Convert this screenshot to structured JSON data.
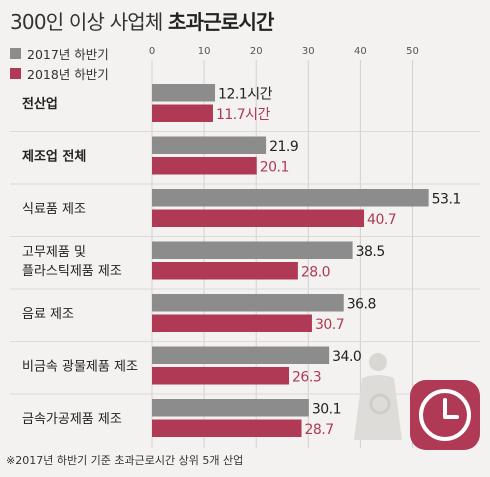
{
  "header": {
    "title_normal": "300인 이상 사업체 ",
    "title_bold": "초과근로시간"
  },
  "legend": [
    {
      "label": "2017년 하반기",
      "color": "#8c8c8c"
    },
    {
      "label": "2018년 하반기",
      "color": "#b03a56"
    }
  ],
  "colors": {
    "series_2017": "#8c8c8c",
    "series_2018": "#b03a56",
    "clock_bg": "#b03a56",
    "background": "#f3f2f0"
  },
  "footnote": "※2017년 하반기 기준 초과근로시간 상위 5개 산업",
  "chart_data": {
    "type": "bar",
    "orientation": "horizontal",
    "xlim": [
      0,
      55
    ],
    "ticks": [
      0,
      10,
      20,
      30,
      40,
      50
    ],
    "grid": true,
    "legend_position": "top-left",
    "categories": [
      {
        "label": "전산업",
        "bold": true
      },
      {
        "label": "제조업 전체",
        "bold": true
      },
      {
        "label": "식료품 제조",
        "bold": false
      },
      {
        "label": "고무제품 및\n플라스틱제품 제조",
        "bold": false
      },
      {
        "label": "음료 제조",
        "bold": false
      },
      {
        "label": "비금속 광물제품 제조",
        "bold": false
      },
      {
        "label": "금속가공제품 제조",
        "bold": false
      }
    ],
    "series": [
      {
        "name": "2017년 하반기",
        "values": [
          12.1,
          21.9,
          53.1,
          38.5,
          36.8,
          34.0,
          30.1
        ],
        "labels": [
          "12.1시간",
          "21.9",
          "53.1",
          "38.5",
          "36.8",
          "34.0",
          "30.1"
        ]
      },
      {
        "name": "2018년 하반기",
        "values": [
          11.7,
          20.1,
          40.7,
          28.0,
          30.7,
          26.3,
          28.7
        ],
        "labels": [
          "11.7시간",
          "20.1",
          "40.7",
          "28.0",
          "30.7",
          "26.3",
          "28.7"
        ]
      }
    ]
  }
}
